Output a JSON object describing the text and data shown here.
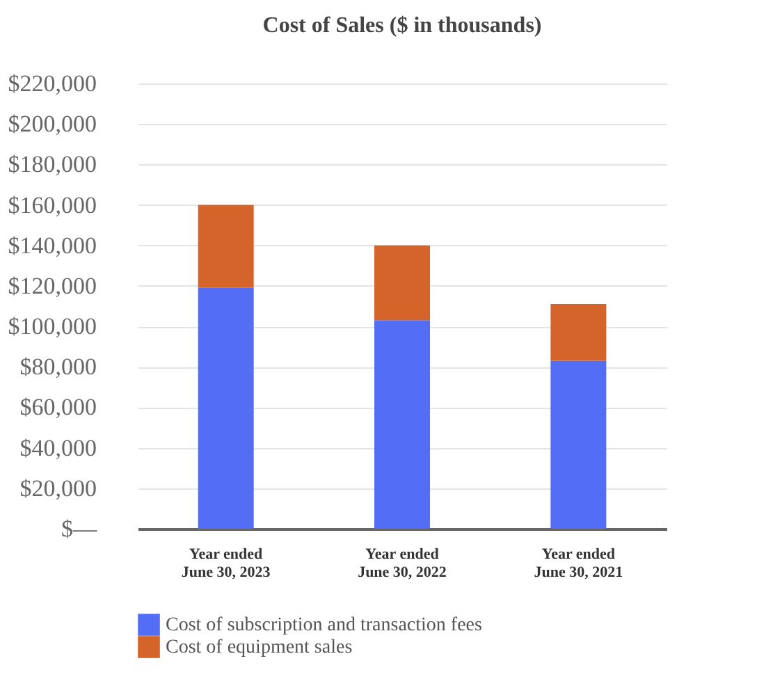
{
  "chart_data": {
    "type": "bar",
    "title": "Cost of Sales ($ in thousands)",
    "stacked": true,
    "categories": [
      "Year ended\nJune 30, 2023",
      "Year ended\nJune 30, 2022",
      "Year ended\nJune 30, 2021"
    ],
    "series": [
      {
        "name": "Cost of subscription and transaction fees",
        "color": "#536df4",
        "values": [
          119000,
          103000,
          83000
        ]
      },
      {
        "name": "Cost of equipment sales",
        "color": "#d5642a",
        "values": [
          41000,
          37000,
          28000
        ]
      }
    ],
    "ylim": [
      0,
      220000
    ],
    "yticks": [
      {
        "value": 0,
        "label": "$—"
      },
      {
        "value": 20000,
        "label": "$20,000"
      },
      {
        "value": 40000,
        "label": "$40,000"
      },
      {
        "value": 60000,
        "label": "$60,000"
      },
      {
        "value": 80000,
        "label": "$80,000"
      },
      {
        "value": 100000,
        "label": "$100,000"
      },
      {
        "value": 120000,
        "label": "$120,000"
      },
      {
        "value": 140000,
        "label": "$140,000"
      },
      {
        "value": 160000,
        "label": "$160,000"
      },
      {
        "value": 180000,
        "label": "$180,000"
      },
      {
        "value": 200000,
        "label": "$200,000"
      },
      {
        "value": 220000,
        "label": "$220,000"
      }
    ],
    "grid": "y",
    "legend": "bottom"
  }
}
